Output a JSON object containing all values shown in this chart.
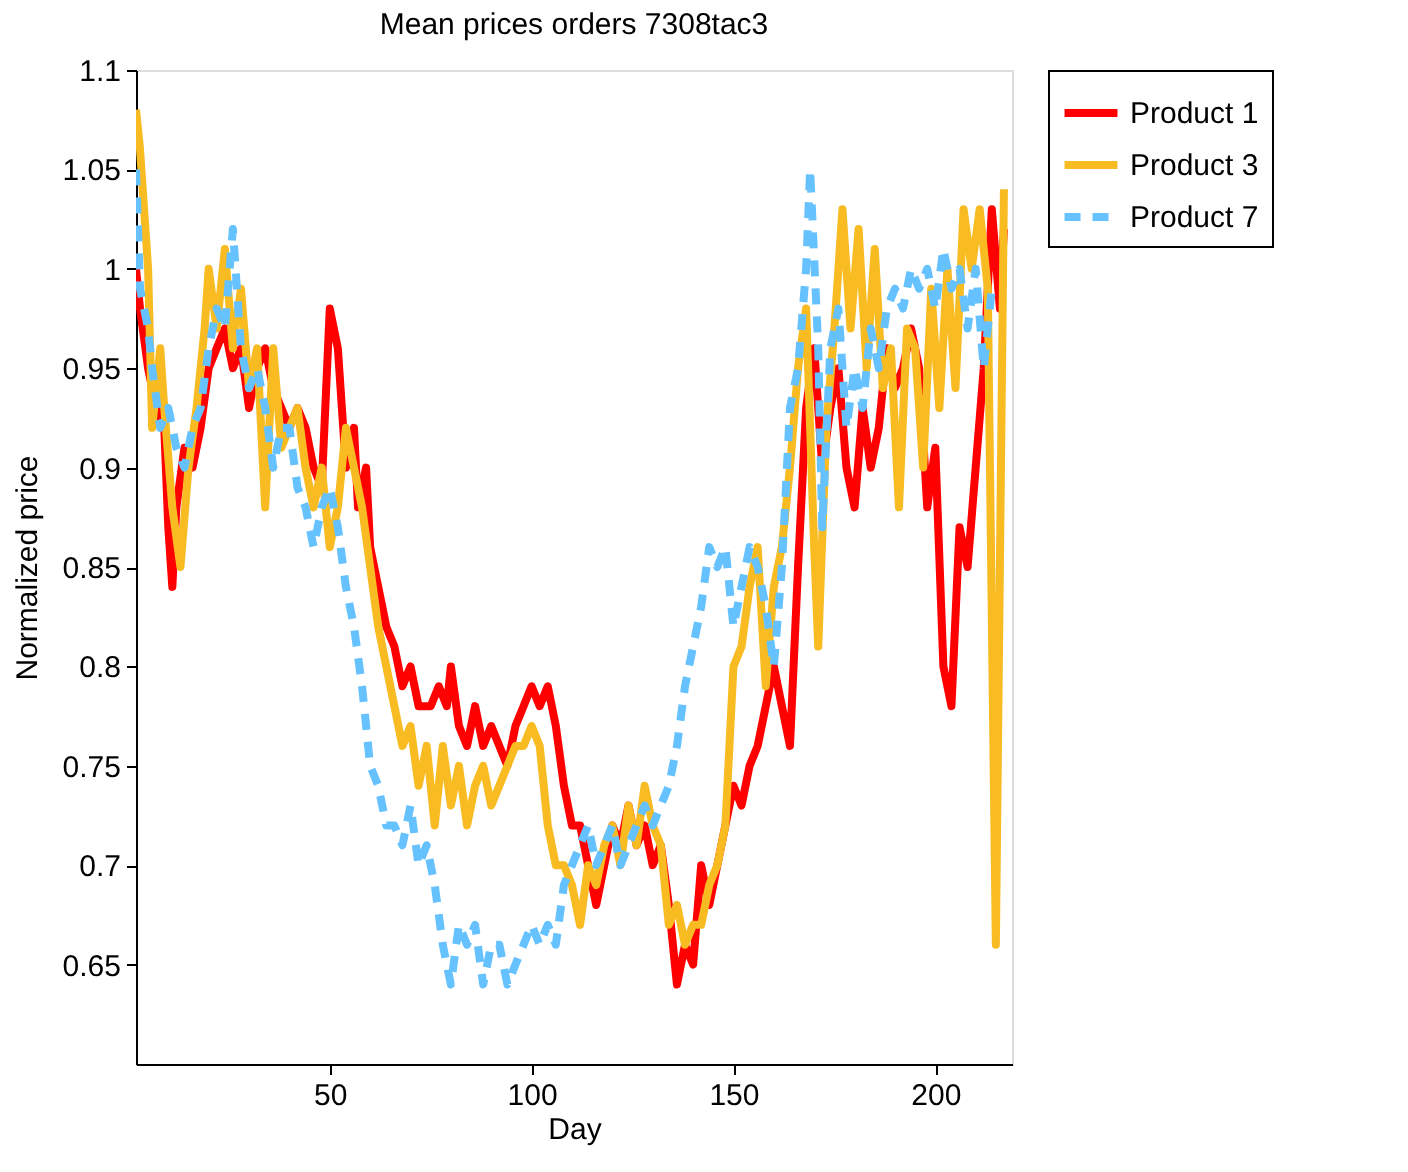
{
  "chart_data": {
    "type": "line",
    "title": "Mean prices orders 7308tac3",
    "xlabel": "Day",
    "ylabel": "Normalized price",
    "xlim": [
      2,
      219
    ],
    "ylim": [
      0.6,
      1.1
    ],
    "xticks": [
      50,
      100,
      150,
      200
    ],
    "yticks": [
      0.65,
      0.7,
      0.75,
      0.8,
      0.85,
      0.9,
      0.95,
      1,
      1.05,
      1.1
    ],
    "grid": false,
    "legend": "top right",
    "marker": "none",
    "series": [
      {
        "name": "Product 1",
        "color": "#ff0000",
        "line_style": "solid",
        "x": [
          2,
          3,
          5,
          7,
          9,
          10,
          11,
          12,
          14,
          16,
          18,
          20,
          22,
          24,
          26,
          28,
          30,
          32,
          34,
          36,
          38,
          40,
          42,
          44,
          46,
          48,
          50,
          52,
          54,
          56,
          57,
          59,
          60,
          62,
          64,
          66,
          68,
          70,
          72,
          75,
          77,
          79,
          80,
          82,
          84,
          86,
          88,
          90,
          92,
          94,
          96,
          98,
          100,
          102,
          104,
          106,
          108,
          110,
          112,
          114,
          116,
          118,
          120,
          122,
          124,
          126,
          128,
          130,
          132,
          134,
          136,
          138,
          140,
          142,
          144,
          146,
          148,
          150,
          152,
          154,
          156,
          158,
          160,
          162,
          164,
          166,
          168,
          170,
          172,
          174,
          176,
          178,
          180,
          182,
          184,
          186,
          188,
          190,
          192,
          194,
          196,
          198,
          200,
          202,
          204,
          206,
          208,
          210,
          212,
          214,
          216,
          217
        ],
        "values": [
          1.0,
          0.98,
          0.95,
          0.93,
          0.92,
          0.87,
          0.84,
          0.88,
          0.91,
          0.9,
          0.92,
          0.95,
          0.96,
          0.97,
          0.95,
          0.96,
          0.93,
          0.95,
          0.96,
          0.94,
          0.93,
          0.92,
          0.93,
          0.92,
          0.9,
          0.89,
          0.98,
          0.96,
          0.9,
          0.92,
          0.88,
          0.9,
          0.86,
          0.84,
          0.82,
          0.81,
          0.79,
          0.8,
          0.78,
          0.78,
          0.79,
          0.78,
          0.8,
          0.77,
          0.76,
          0.78,
          0.76,
          0.77,
          0.76,
          0.75,
          0.77,
          0.78,
          0.79,
          0.78,
          0.79,
          0.77,
          0.74,
          0.72,
          0.72,
          0.7,
          0.68,
          0.7,
          0.72,
          0.71,
          0.73,
          0.71,
          0.72,
          0.7,
          0.71,
          0.68,
          0.64,
          0.66,
          0.65,
          0.7,
          0.68,
          0.7,
          0.72,
          0.74,
          0.73,
          0.75,
          0.76,
          0.78,
          0.8,
          0.78,
          0.76,
          0.85,
          0.93,
          0.96,
          0.9,
          0.93,
          0.95,
          0.9,
          0.88,
          0.93,
          0.9,
          0.92,
          0.96,
          0.94,
          0.95,
          0.97,
          0.95,
          0.88,
          0.91,
          0.8,
          0.78,
          0.87,
          0.85,
          0.9,
          0.95,
          1.03,
          0.98,
          1.02
        ]
      },
      {
        "name": "Product 3",
        "color": "#f8bb22",
        "line_style": "solid",
        "x": [
          2,
          3,
          5,
          6,
          8,
          9,
          11,
          13,
          15,
          17,
          19,
          20,
          22,
          24,
          26,
          28,
          30,
          32,
          34,
          36,
          38,
          40,
          42,
          44,
          46,
          48,
          50,
          52,
          54,
          56,
          58,
          60,
          62,
          64,
          66,
          68,
          70,
          72,
          74,
          76,
          78,
          80,
          82,
          84,
          86,
          88,
          90,
          92,
          94,
          96,
          98,
          100,
          102,
          104,
          106,
          108,
          110,
          112,
          114,
          116,
          118,
          120,
          122,
          124,
          126,
          128,
          130,
          132,
          134,
          136,
          138,
          140,
          142,
          144,
          146,
          148,
          150,
          152,
          154,
          156,
          158,
          160,
          162,
          164,
          166,
          168,
          170,
          171,
          173,
          175,
          177,
          179,
          181,
          183,
          185,
          187,
          189,
          191,
          193,
          195,
          197,
          199,
          201,
          203,
          205,
          207,
          209,
          211,
          213,
          215,
          217
        ],
        "values": [
          1.08,
          1.06,
          1.0,
          0.92,
          0.96,
          0.93,
          0.88,
          0.85,
          0.9,
          0.93,
          0.97,
          1.0,
          0.97,
          1.01,
          0.96,
          0.99,
          0.94,
          0.96,
          0.88,
          0.96,
          0.91,
          0.92,
          0.93,
          0.9,
          0.88,
          0.9,
          0.86,
          0.88,
          0.92,
          0.9,
          0.88,
          0.85,
          0.82,
          0.8,
          0.78,
          0.76,
          0.77,
          0.74,
          0.76,
          0.72,
          0.76,
          0.73,
          0.75,
          0.72,
          0.74,
          0.75,
          0.73,
          0.74,
          0.75,
          0.76,
          0.76,
          0.77,
          0.76,
          0.72,
          0.7,
          0.7,
          0.69,
          0.67,
          0.7,
          0.69,
          0.71,
          0.72,
          0.7,
          0.73,
          0.71,
          0.74,
          0.72,
          0.71,
          0.67,
          0.68,
          0.66,
          0.67,
          0.67,
          0.69,
          0.7,
          0.72,
          0.8,
          0.81,
          0.84,
          0.86,
          0.79,
          0.84,
          0.86,
          0.9,
          0.95,
          0.98,
          0.86,
          0.81,
          0.92,
          0.97,
          1.03,
          0.97,
          1.02,
          0.95,
          1.01,
          0.94,
          0.96,
          0.88,
          0.97,
          0.96,
          0.9,
          0.99,
          0.93,
          1.0,
          0.94,
          1.03,
          1.0,
          1.03,
          0.99,
          0.66,
          1.04
        ]
      },
      {
        "name": "Product 7",
        "color": "#66c2ff",
        "line_style": "dashed",
        "x": [
          2,
          3,
          5,
          6,
          8,
          10,
          12,
          14,
          16,
          18,
          20,
          22,
          24,
          26,
          28,
          30,
          32,
          34,
          36,
          38,
          40,
          42,
          44,
          46,
          48,
          50,
          52,
          54,
          56,
          58,
          60,
          62,
          64,
          66,
          68,
          70,
          72,
          74,
          76,
          78,
          80,
          82,
          84,
          86,
          88,
          90,
          92,
          94,
          96,
          98,
          100,
          102,
          104,
          106,
          108,
          110,
          112,
          114,
          116,
          118,
          120,
          122,
          124,
          126,
          128,
          130,
          132,
          134,
          136,
          138,
          140,
          142,
          144,
          146,
          148,
          150,
          152,
          154,
          156,
          158,
          160,
          162,
          164,
          166,
          168,
          169,
          171,
          172,
          174,
          176,
          178,
          180,
          182,
          184,
          186,
          188,
          190,
          192,
          194,
          196,
          198,
          200,
          202,
          204,
          206,
          208,
          210,
          212,
          214
        ],
        "values": [
          1.05,
          0.99,
          0.97,
          0.95,
          0.92,
          0.93,
          0.91,
          0.9,
          0.92,
          0.93,
          0.96,
          0.98,
          0.97,
          1.02,
          0.96,
          0.94,
          0.95,
          0.93,
          0.9,
          0.92,
          0.92,
          0.89,
          0.88,
          0.86,
          0.88,
          0.89,
          0.87,
          0.84,
          0.82,
          0.79,
          0.75,
          0.74,
          0.72,
          0.72,
          0.71,
          0.73,
          0.7,
          0.71,
          0.69,
          0.66,
          0.64,
          0.67,
          0.66,
          0.67,
          0.64,
          0.66,
          0.66,
          0.64,
          0.65,
          0.66,
          0.67,
          0.66,
          0.67,
          0.66,
          0.69,
          0.7,
          0.71,
          0.72,
          0.7,
          0.71,
          0.72,
          0.7,
          0.71,
          0.72,
          0.73,
          0.72,
          0.73,
          0.74,
          0.76,
          0.79,
          0.81,
          0.83,
          0.86,
          0.85,
          0.86,
          0.82,
          0.84,
          0.86,
          0.85,
          0.83,
          0.8,
          0.85,
          0.93,
          0.95,
          1.0,
          1.05,
          0.96,
          0.87,
          0.96,
          0.98,
          0.92,
          0.95,
          0.93,
          0.97,
          0.95,
          0.98,
          0.99,
          0.98,
          1.0,
          0.99,
          1.0,
          0.98,
          1.01,
          0.99,
          1.0,
          0.97,
          1.0,
          0.95,
          0.99
        ]
      }
    ]
  }
}
